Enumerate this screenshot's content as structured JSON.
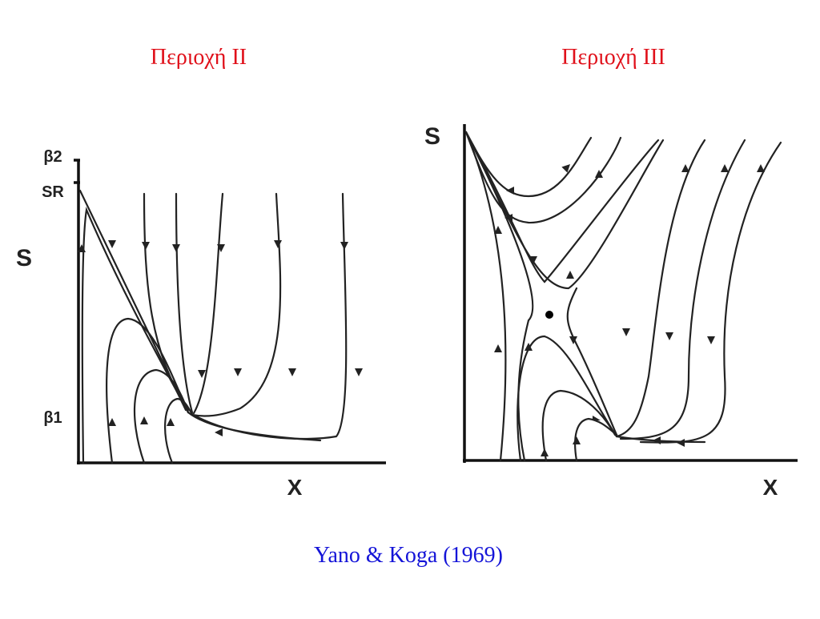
{
  "panels": [
    {
      "title": "Περιοχή II",
      "labels": {
        "beta2": "β2",
        "sr": "SR",
        "y_axis": "S",
        "beta1": "β1",
        "x_axis": "X"
      }
    },
    {
      "title": "Περιοχή III",
      "labels": {
        "y_axis": "S",
        "x_axis": "X"
      }
    }
  ],
  "caption": "Yano & Koga (1969)"
}
